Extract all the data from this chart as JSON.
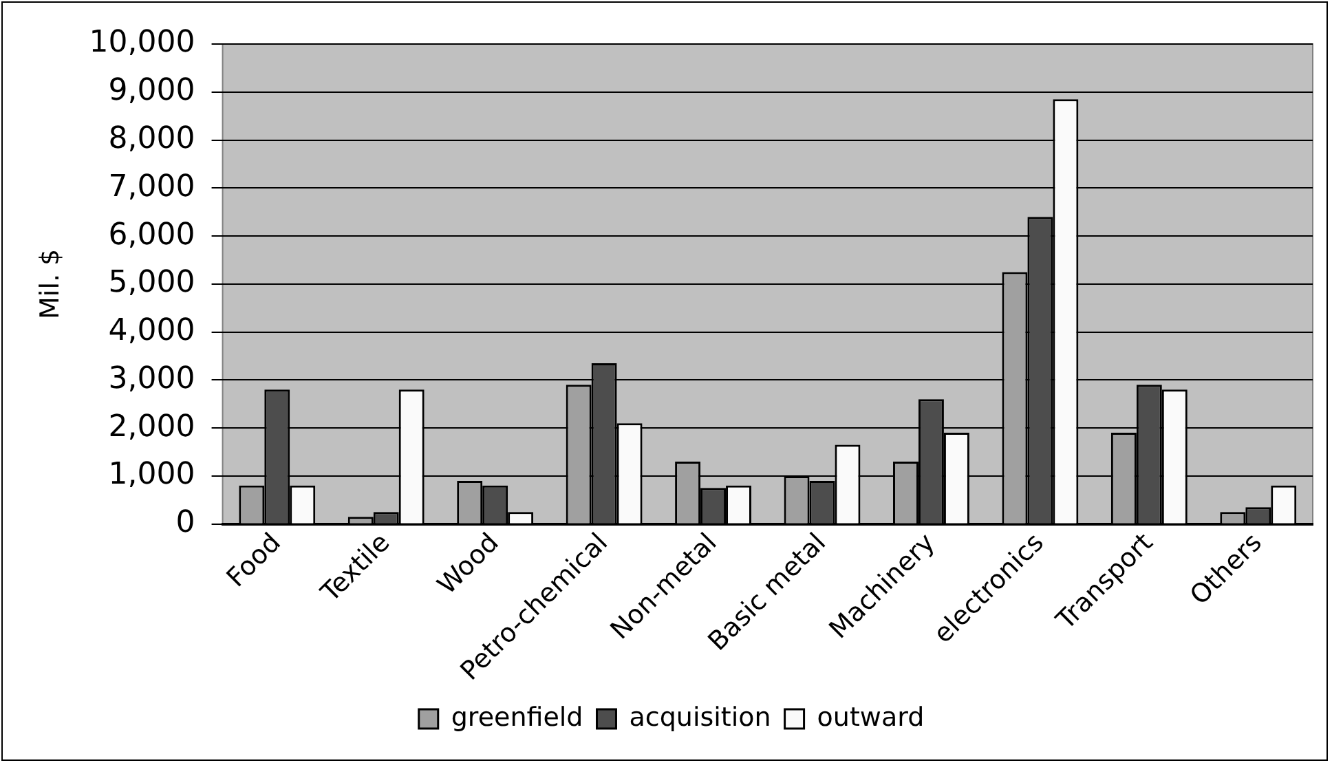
{
  "chart_data": {
    "type": "bar",
    "ylabel": "Mil. $",
    "categories": [
      "Food",
      "Textile",
      "Wood",
      "Petro-chemical",
      "Non-metal",
      "Basic metal",
      "Machinery",
      "electronics",
      "Transport",
      "Others"
    ],
    "series": [
      {
        "name": "greenfield",
        "color": "#a0a0a0",
        "values": [
          800,
          150,
          900,
          2900,
          1300,
          1000,
          1300,
          5250,
          1900,
          250
        ]
      },
      {
        "name": "acquisition",
        "color": "#4d4d4d",
        "values": [
          2800,
          250,
          800,
          3350,
          750,
          900,
          2600,
          6400,
          2900,
          350
        ]
      },
      {
        "name": "outward",
        "color": "#fafafa",
        "values": [
          800,
          2800,
          250,
          2100,
          800,
          1650,
          1900,
          8850,
          2800,
          800
        ]
      }
    ],
    "ylim": [
      0,
      10000
    ],
    "yticks": [
      {
        "value": 0,
        "label": "0"
      },
      {
        "value": 1000,
        "label": "1,000"
      },
      {
        "value": 2000,
        "label": "2,000"
      },
      {
        "value": 3000,
        "label": "3,000"
      },
      {
        "value": 4000,
        "label": "4,000"
      },
      {
        "value": 5000,
        "label": "5,000"
      },
      {
        "value": 6000,
        "label": "6,000"
      },
      {
        "value": 7000,
        "label": "7,000"
      },
      {
        "value": 8000,
        "label": "8,000"
      },
      {
        "value": 9000,
        "label": "9,000"
      },
      {
        "value": 10000,
        "label": "10,000"
      }
    ],
    "grid": "y",
    "legend": "bottom"
  }
}
